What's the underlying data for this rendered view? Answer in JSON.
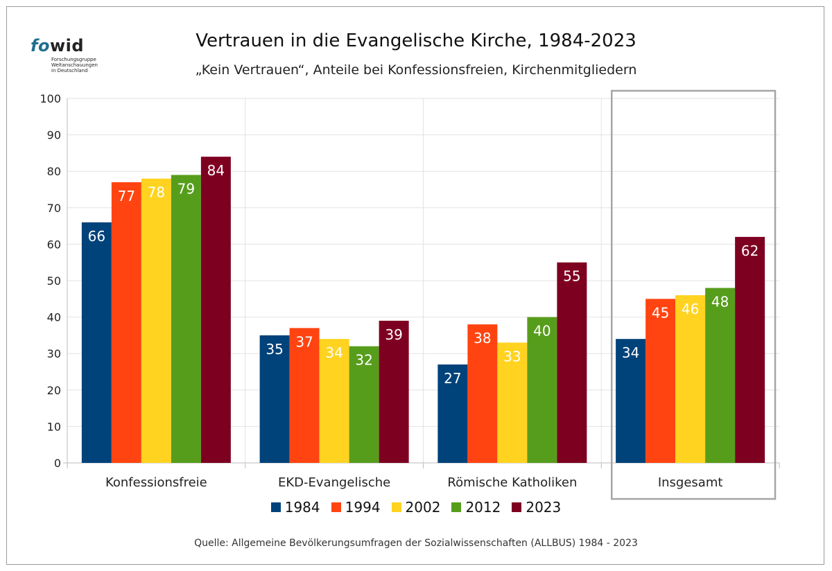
{
  "logo": {
    "brand_fo": "fo",
    "brand_wid": "wid",
    "tagline": "Forschungsgruppe\nWeltanschauungen\nin Deutschland"
  },
  "title": "Vertrauen in die Evangelische Kirche, 1984-2023",
  "subtitle": "„Kein Vertrauen“, Anteile bei Konfessionsfreien, Kirchenmitgliedern",
  "source": "Quelle: Allgemeine Bevölkerungsumfragen der Sozialwissenschaften (ALLBUS) 1984 - 2023",
  "chart_data": {
    "type": "bar",
    "categories": [
      "Konfessionsfreie",
      "EKD-Evangelische",
      "Römische Katholiken",
      "Insgesamt"
    ],
    "series": [
      {
        "name": "1984",
        "color": "#00427a",
        "values": [
          66,
          35,
          27,
          34
        ]
      },
      {
        "name": "1994",
        "color": "#ff4411",
        "values": [
          77,
          37,
          38,
          45
        ]
      },
      {
        "name": "2002",
        "color": "#ffd320",
        "values": [
          78,
          34,
          33,
          46
        ]
      },
      {
        "name": "2012",
        "color": "#579d1c",
        "values": [
          79,
          32,
          40,
          48
        ]
      },
      {
        "name": "2023",
        "color": "#7e0021",
        "values": [
          84,
          39,
          55,
          62
        ]
      }
    ],
    "ylim": [
      0,
      100
    ],
    "yticks": [
      0,
      10,
      20,
      30,
      40,
      50,
      60,
      70,
      80,
      90,
      100
    ],
    "data_labels": true,
    "grid": true,
    "highlighted_category": "Insgesamt",
    "legend_position": "bottom"
  }
}
